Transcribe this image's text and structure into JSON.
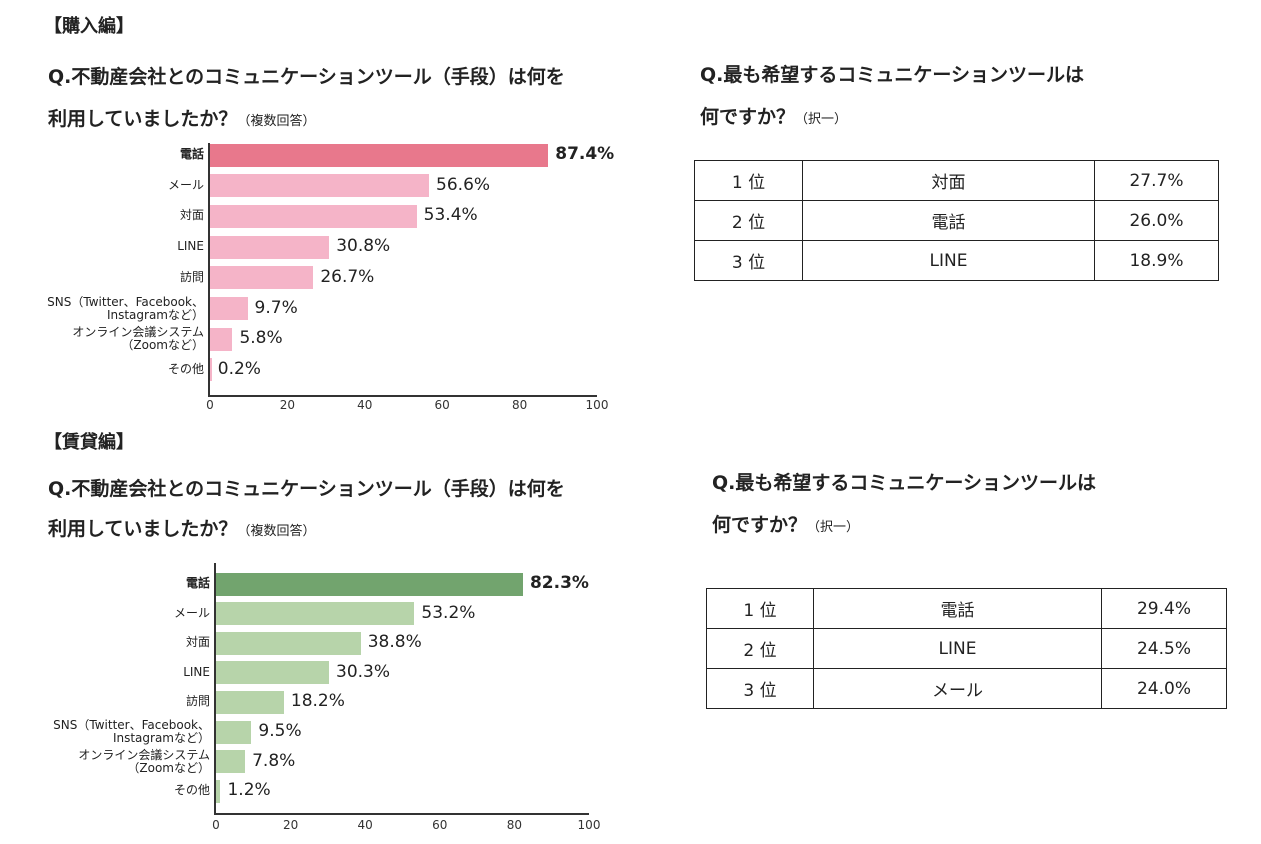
{
  "sections": [
    {
      "heading": "【購入編】",
      "question_line1": "Q.不動産会社とのコミュニケーションツール（手段）は何を",
      "question_line2": "利用していましたか？",
      "question_note": "（複数回答）",
      "ranking_question_line1": "Q.最も希望するコミュニケーションツールは",
      "ranking_question_line2": "何ですか？",
      "ranking_note": "（択一）",
      "ranking": [
        {
          "rank": "1 位",
          "tool": "対面",
          "value": "27.7%"
        },
        {
          "rank": "2 位",
          "tool": "電話",
          "value": "26.0%"
        },
        {
          "rank": "3 位",
          "tool": "LINE",
          "value": "18.9%"
        }
      ]
    },
    {
      "heading": "【賃貸編】",
      "question_line1": "Q.不動産会社とのコミュニケーションツール（手段）は何を",
      "question_line2": "利用していましたか？",
      "question_note": "（複数回答）",
      "ranking_question_line1": "Q.最も希望するコミュニケーションツールは",
      "ranking_question_line2": "何ですか？",
      "ranking_note": "（択一）",
      "ranking": [
        {
          "rank": "1 位",
          "tool": "電話",
          "value": "29.4%"
        },
        {
          "rank": "2 位",
          "tool": "LINE",
          "value": "24.5%"
        },
        {
          "rank": "3 位",
          "tool": "メール",
          "value": "24.0%"
        }
      ]
    }
  ],
  "chart_data": [
    {
      "type": "bar",
      "orientation": "horizontal",
      "categories": [
        "電話",
        "メール",
        "対面",
        "LINE",
        "訪問",
        "SNS（Twitter、Facebook、\nInstagramなど）",
        "オンライン会議システム\n（Zoomなど）",
        "その他"
      ],
      "values": [
        87.4,
        56.6,
        53.4,
        30.8,
        26.7,
        9.7,
        5.8,
        0.2
      ],
      "labels": [
        "87.4%",
        "56.6%",
        "53.4%",
        "30.8%",
        "26.7%",
        "9.7%",
        "5.8%",
        "0.2%"
      ],
      "xlim": [
        0,
        100
      ],
      "xticks": [
        "0",
        "20",
        "40",
        "60",
        "80",
        "100"
      ],
      "colors": {
        "highlight": "#e8788c",
        "bar": "#f5b4c8"
      },
      "grid": false
    },
    {
      "type": "bar",
      "orientation": "horizontal",
      "categories": [
        "電話",
        "メール",
        "対面",
        "LINE",
        "訪問",
        "SNS（Twitter、Facebook、\nInstagramなど）",
        "オンライン会議システム\n（Zoomなど）",
        "その他"
      ],
      "values": [
        82.3,
        53.2,
        38.8,
        30.3,
        18.2,
        9.5,
        7.8,
        1.2
      ],
      "labels": [
        "82.3%",
        "53.2%",
        "38.8%",
        "30.3%",
        "18.2%",
        "9.5%",
        "7.8%",
        "1.2%"
      ],
      "xlim": [
        0,
        100
      ],
      "xticks": [
        "0",
        "20",
        "40",
        "60",
        "80",
        "100"
      ],
      "colors": {
        "highlight": "#72a46e",
        "bar": "#b7d4aa"
      },
      "grid": false
    }
  ]
}
